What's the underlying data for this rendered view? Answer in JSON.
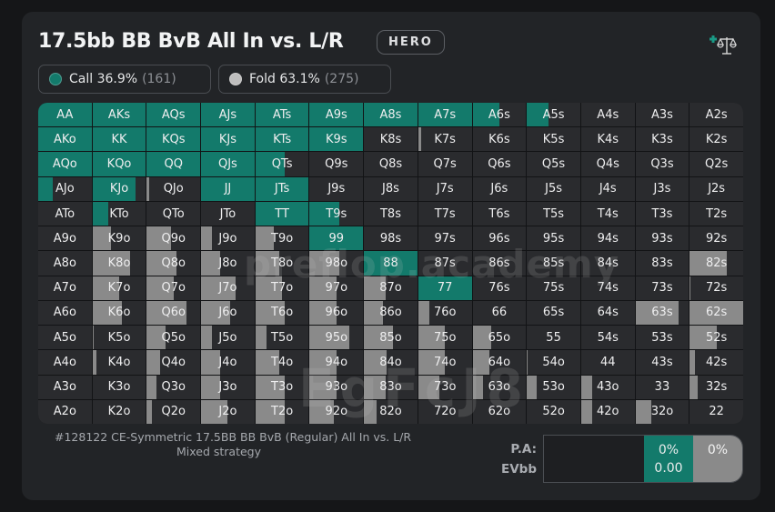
{
  "header": {
    "title": "17.5bb BB BvB All In vs. L/R",
    "badge": "HERO",
    "compare_icon": "balance-scale-plus-icon"
  },
  "legend": [
    {
      "action": "Call",
      "percent": "36.9%",
      "label": "Call 36.9%",
      "count": "(161)",
      "color": "#137a6b"
    },
    {
      "action": "Fold",
      "percent": "63.1%",
      "label": "Fold 63.1%",
      "count": "(275)",
      "color": "#bdbdbd"
    }
  ],
  "colors": {
    "call": "#137a6b",
    "weight_bar": "#8a8a8a",
    "cell_bg": "#2a2b2e"
  },
  "grid": {
    "rows": [
      [
        [
          "AA",
          1,
          0
        ],
        [
          "AKs",
          1,
          0
        ],
        [
          "AQs",
          1,
          0
        ],
        [
          "AJs",
          1,
          0
        ],
        [
          "ATs",
          1,
          0
        ],
        [
          "A9s",
          1,
          0
        ],
        [
          "A8s",
          1,
          0
        ],
        [
          "A7s",
          1,
          0
        ],
        [
          "A6s",
          0.5,
          0
        ],
        [
          "A5s",
          0.4,
          0
        ],
        [
          "A4s",
          0,
          0
        ],
        [
          "A3s",
          0,
          0
        ],
        [
          "A2s",
          0,
          0
        ]
      ],
      [
        [
          "AKo",
          1,
          0
        ],
        [
          "KK",
          1,
          0
        ],
        [
          "KQs",
          1,
          0
        ],
        [
          "KJs",
          1,
          0
        ],
        [
          "KTs",
          1,
          0
        ],
        [
          "K9s",
          1,
          0
        ],
        [
          "K8s",
          0,
          0
        ],
        [
          "K7s",
          0,
          0.05
        ],
        [
          "K6s",
          0,
          0
        ],
        [
          "K5s",
          0,
          0
        ],
        [
          "K4s",
          0,
          0
        ],
        [
          "K3s",
          0,
          0
        ],
        [
          "K2s",
          0,
          0
        ]
      ],
      [
        [
          "AQo",
          1,
          0
        ],
        [
          "KQo",
          1,
          0
        ],
        [
          "QQ",
          1,
          0
        ],
        [
          "QJs",
          1,
          0
        ],
        [
          "QTs",
          0.55,
          0
        ],
        [
          "Q9s",
          0,
          0
        ],
        [
          "Q8s",
          0,
          0
        ],
        [
          "Q7s",
          0,
          0
        ],
        [
          "Q6s",
          0,
          0
        ],
        [
          "Q5s",
          0,
          0
        ],
        [
          "Q4s",
          0,
          0
        ],
        [
          "Q3s",
          0,
          0
        ],
        [
          "Q2s",
          0,
          0
        ]
      ],
      [
        [
          "AJo",
          0.28,
          0
        ],
        [
          "KJo",
          0.8,
          0
        ],
        [
          "QJo",
          0,
          0.05
        ],
        [
          "JJ",
          1,
          0
        ],
        [
          "JTs",
          1,
          0
        ],
        [
          "J9s",
          0,
          0
        ],
        [
          "J8s",
          0,
          0
        ],
        [
          "J7s",
          0,
          0
        ],
        [
          "J6s",
          0,
          0
        ],
        [
          "J5s",
          0,
          0
        ],
        [
          "J4s",
          0,
          0
        ],
        [
          "J3s",
          0,
          0
        ],
        [
          "J2s",
          0,
          0
        ]
      ],
      [
        [
          "ATo",
          0,
          0
        ],
        [
          "KTo",
          0.3,
          0
        ],
        [
          "QTo",
          0,
          0
        ],
        [
          "JTo",
          0,
          0
        ],
        [
          "TT",
          1,
          0
        ],
        [
          "T9s",
          0.55,
          0
        ],
        [
          "T8s",
          0,
          0
        ],
        [
          "T7s",
          0,
          0
        ],
        [
          "T6s",
          0,
          0
        ],
        [
          "T5s",
          0,
          0
        ],
        [
          "T4s",
          0,
          0
        ],
        [
          "T3s",
          0,
          0
        ],
        [
          "T2s",
          0,
          0
        ]
      ],
      [
        [
          "A9o",
          0,
          0
        ],
        [
          "K9o",
          0,
          0.35
        ],
        [
          "Q9o",
          0,
          0.45
        ],
        [
          "J9o",
          0,
          0.2
        ],
        [
          "T9o",
          0,
          0.35
        ],
        [
          "99",
          1,
          0
        ],
        [
          "98s",
          0,
          0
        ],
        [
          "97s",
          0,
          0
        ],
        [
          "96s",
          0,
          0
        ],
        [
          "95s",
          0,
          0
        ],
        [
          "94s",
          0,
          0
        ],
        [
          "93s",
          0,
          0
        ],
        [
          "92s",
          0,
          0
        ]
      ],
      [
        [
          "A8o",
          0,
          0
        ],
        [
          "K8o",
          0,
          0.7
        ],
        [
          "Q8o",
          0,
          0.55
        ],
        [
          "J8o",
          0,
          0.35
        ],
        [
          "T8o",
          0,
          0.45
        ],
        [
          "98o",
          0,
          0.55
        ],
        [
          "88",
          1,
          0
        ],
        [
          "87s",
          0,
          0
        ],
        [
          "86s",
          0,
          0
        ],
        [
          "85s",
          0,
          0
        ],
        [
          "84s",
          0,
          0
        ],
        [
          "83s",
          0,
          0
        ],
        [
          "82s",
          0,
          0.7
        ]
      ],
      [
        [
          "A7o",
          0,
          0
        ],
        [
          "K7o",
          0,
          0.5
        ],
        [
          "Q7o",
          0,
          0.5
        ],
        [
          "J7o",
          0,
          0.65
        ],
        [
          "T7o",
          0,
          0.5
        ],
        [
          "97o",
          0,
          0.5
        ],
        [
          "87o",
          0,
          0.4
        ],
        [
          "77",
          1,
          0
        ],
        [
          "76s",
          0,
          0
        ],
        [
          "75s",
          0,
          0
        ],
        [
          "74s",
          0,
          0
        ],
        [
          "73s",
          0,
          0
        ],
        [
          "72s",
          0,
          0.02
        ]
      ],
      [
        [
          "A6o",
          0,
          0
        ],
        [
          "K6o",
          0,
          0.55
        ],
        [
          "Q6o",
          0,
          0.75
        ],
        [
          "J6o",
          0,
          0.55
        ],
        [
          "T6o",
          0,
          0.55
        ],
        [
          "96o",
          0,
          0.5
        ],
        [
          "86o",
          0,
          0.35
        ],
        [
          "76o",
          0,
          0.2
        ],
        [
          "66",
          0,
          0
        ],
        [
          "65s",
          0,
          0
        ],
        [
          "64s",
          0,
          0
        ],
        [
          "63s",
          0,
          0.8
        ],
        [
          "62s",
          0,
          1
        ]
      ],
      [
        [
          "A5o",
          0,
          0
        ],
        [
          "K5o",
          0,
          0.03
        ],
        [
          "Q5o",
          0,
          0.35
        ],
        [
          "J5o",
          0,
          0.2
        ],
        [
          "T5o",
          0,
          0.2
        ],
        [
          "95o",
          0,
          0.75
        ],
        [
          "85o",
          0,
          0.55
        ],
        [
          "75o",
          0,
          0.5
        ],
        [
          "65o",
          0,
          0.35
        ],
        [
          "55",
          0,
          0
        ],
        [
          "54s",
          0,
          0
        ],
        [
          "53s",
          0,
          0
        ],
        [
          "52s",
          0,
          0.5
        ]
      ],
      [
        [
          "A4o",
          0,
          0
        ],
        [
          "K4o",
          0,
          0.08
        ],
        [
          "Q4o",
          0,
          0.25
        ],
        [
          "J4o",
          0,
          0.35
        ],
        [
          "T4o",
          0,
          0.45
        ],
        [
          "94o",
          0,
          0.5
        ],
        [
          "84o",
          0,
          0.42
        ],
        [
          "74o",
          0,
          0.5
        ],
        [
          "64o",
          0,
          0.32
        ],
        [
          "54o",
          0,
          0.02
        ],
        [
          "44",
          0,
          0
        ],
        [
          "43s",
          0,
          0
        ],
        [
          "42s",
          0,
          0.1
        ]
      ],
      [
        [
          "A3o",
          0,
          0
        ],
        [
          "K3o",
          0,
          0
        ],
        [
          "Q3o",
          0,
          0.18
        ],
        [
          "J3o",
          0,
          0.35
        ],
        [
          "T3o",
          0,
          0.55
        ],
        [
          "93o",
          0,
          0.5
        ],
        [
          "83o",
          0,
          0.4
        ],
        [
          "73o",
          0,
          0.4
        ],
        [
          "63o",
          0,
          0.2
        ],
        [
          "53o",
          0,
          0.18
        ],
        [
          "43o",
          0,
          0.2
        ],
        [
          "33",
          0,
          0
        ],
        [
          "32s",
          0,
          0.15
        ]
      ],
      [
        [
          "A2o",
          0,
          0
        ],
        [
          "K2o",
          0,
          0
        ],
        [
          "Q2o",
          0,
          0.1
        ],
        [
          "J2o",
          0,
          0.5
        ],
        [
          "T2o",
          0,
          0.55
        ],
        [
          "92o",
          0,
          0.45
        ],
        [
          "82o",
          0,
          0.23
        ],
        [
          "72o",
          0,
          0
        ],
        [
          "62o",
          0,
          0
        ],
        [
          "52o",
          0,
          0
        ],
        [
          "42o",
          0,
          0.2
        ],
        [
          "32o",
          0,
          0.3
        ],
        [
          "22",
          0,
          0
        ]
      ]
    ],
    "cell_format": [
      "hand",
      "call_fraction",
      "weight_bar_fraction"
    ]
  },
  "watermark": {
    "line1": "preflop.academy",
    "line2": "EgFcJ8"
  },
  "footer": {
    "spot_id": "#128122 CE-Symmetric 17.5BB BB BvB (Regular) All In vs. L/R",
    "mode": "Mixed strategy"
  },
  "summary": {
    "pa_label": "P.A:",
    "ev_label": "EVbb",
    "call_pct": "0%",
    "call_ev": "0.00",
    "fold_pct": "0%"
  }
}
